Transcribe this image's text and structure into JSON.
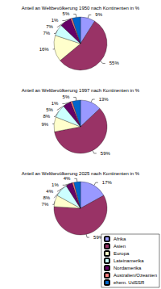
{
  "chart_data": [
    {
      "type": "pie",
      "title": "Anteil an Weltbevölkerung 1950 nach Kontinenten in %",
      "categories": [
        "Afrika",
        "Asien",
        "Europa",
        "Lateinamerika",
        "Nordamerika",
        "Australien/Ozeanien",
        "ehem. UdSSR"
      ],
      "values": [
        9,
        55,
        16,
        7,
        7,
        1,
        5
      ],
      "value_labels": [
        "9%",
        "55%",
        "16%",
        "7%",
        "7%",
        "1%",
        "5%"
      ],
      "colors": [
        "#9999ff",
        "#993366",
        "#ffffcc",
        "#ccffff",
        "#660066",
        "#ff8080",
        "#0066cc"
      ],
      "data_labels": true
    },
    {
      "type": "pie",
      "title": "Anteil an Weltbevölkerung 1997 nach Kontinenten in %",
      "categories": [
        "Afrika",
        "Asien",
        "Europa",
        "Lateinamerika",
        "Nordamerika",
        "Australien/Ozeanien",
        "ehem. UdSSR"
      ],
      "values": [
        13,
        59,
        9,
        8,
        5,
        1,
        5
      ],
      "value_labels": [
        "13%",
        "59%",
        "9%",
        "8%",
        "5%",
        "1%",
        "5%"
      ],
      "colors": [
        "#9999ff",
        "#993366",
        "#ffffcc",
        "#ccffff",
        "#660066",
        "#ff8080",
        "#0066cc"
      ],
      "data_labels": true
    },
    {
      "type": "pie",
      "title": "Anteil an Weltbevölkerung 2025 nach Kontinenten in %",
      "categories": [
        "Afrika",
        "Asien",
        "Europa",
        "Lateinamerika",
        "Nordamerika",
        "Australien/Ozeanien",
        "ehem. UdSSR"
      ],
      "values": [
        17,
        59,
        7,
        8,
        4,
        1,
        4
      ],
      "value_labels": [
        "17%",
        "59%",
        "7%",
        "8%",
        "4%",
        "1%",
        "4%"
      ],
      "colors": [
        "#9999ff",
        "#993366",
        "#ffffcc",
        "#ccffff",
        "#660066",
        "#ff8080",
        "#0066cc"
      ],
      "data_labels": true,
      "legend": "bottom right"
    }
  ]
}
